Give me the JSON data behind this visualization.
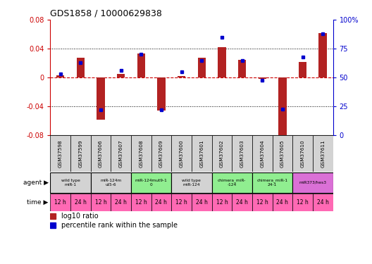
{
  "title": "GDS1858 / 10000629838",
  "samples": [
    "GSM37598",
    "GSM37599",
    "GSM37606",
    "GSM37607",
    "GSM37608",
    "GSM37609",
    "GSM37600",
    "GSM37601",
    "GSM37602",
    "GSM37603",
    "GSM37604",
    "GSM37605",
    "GSM37610",
    "GSM37611"
  ],
  "log10_ratio": [
    0.003,
    0.028,
    -0.058,
    0.005,
    0.033,
    -0.045,
    0.002,
    0.028,
    0.042,
    0.025,
    -0.002,
    -0.082,
    0.022,
    0.062
  ],
  "percentile_rank": [
    53,
    63,
    22,
    56,
    70,
    22,
    55,
    65,
    85,
    65,
    48,
    23,
    68,
    88
  ],
  "bar_color": "#b22222",
  "dot_color": "#0000cd",
  "zero_line_color": "#cc0000",
  "dotted_line_color": "#000000",
  "ylim_left": [
    -0.08,
    0.08
  ],
  "ylim_right": [
    0,
    100
  ],
  "yticks_left": [
    -0.08,
    -0.04,
    0.0,
    0.04,
    0.08
  ],
  "yticks_right": [
    0,
    25,
    50,
    75,
    100
  ],
  "ytick_labels_left": [
    "-0.08",
    "-0.04",
    "0",
    "0.04",
    "0.08"
  ],
  "ytick_labels_right": [
    "0",
    "25",
    "50",
    "75",
    "100%"
  ],
  "agent_groups": [
    {
      "label": "wild type\nmiR-1",
      "cols": [
        0,
        1
      ],
      "color": "#d3d3d3"
    },
    {
      "label": "miR-124m\nut5-6",
      "cols": [
        2,
        3
      ],
      "color": "#d3d3d3"
    },
    {
      "label": "miR-124mut9-1\n0",
      "cols": [
        4,
        5
      ],
      "color": "#90ee90"
    },
    {
      "label": "wild type\nmiR-124",
      "cols": [
        6,
        7
      ],
      "color": "#d3d3d3"
    },
    {
      "label": "chimera_miR-\n-124",
      "cols": [
        8,
        9
      ],
      "color": "#90ee90"
    },
    {
      "label": "chimera_miR-1\n24-1",
      "cols": [
        10,
        11
      ],
      "color": "#90ee90"
    },
    {
      "label": "miR373/hes3",
      "cols": [
        12,
        13
      ],
      "color": "#da70d6"
    }
  ],
  "time_labels": [
    "12 h",
    "24 h",
    "12 h",
    "24 h",
    "12 h",
    "24 h",
    "12 h",
    "24 h",
    "12 h",
    "24 h",
    "12 h",
    "24 h",
    "12 h",
    "24 h"
  ],
  "time_color": "#ff69b4",
  "bar_width": 0.4,
  "background_color": "#ffffff",
  "left_axis_color": "#cc0000",
  "right_axis_color": "#0000cd",
  "gsm_bg": "#d3d3d3"
}
